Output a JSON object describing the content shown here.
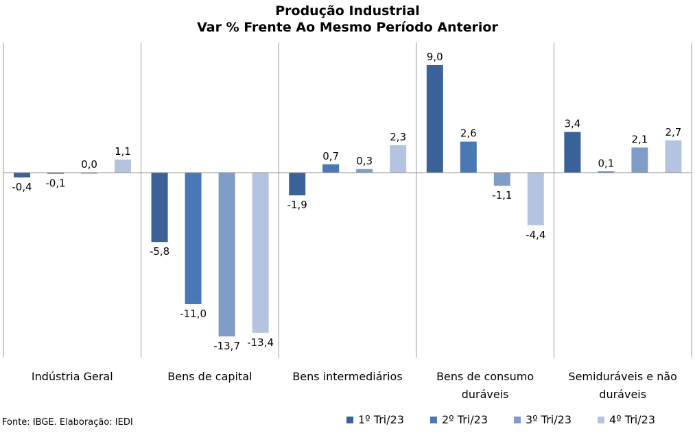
{
  "chart_data": {
    "type": "bar",
    "title": [
      "Produção Industrial",
      "Var % Frente Ao Mesmo Período Anterior"
    ],
    "categories": [
      [
        "Indústria Geral"
      ],
      [
        "Bens de capital"
      ],
      [
        "Bens intermediários"
      ],
      [
        "Bens de consumo",
        "duráveis"
      ],
      [
        "Semiduráveis e não",
        "duráveis"
      ]
    ],
    "series": [
      {
        "name": "1º Tri/23",
        "color": "#3A6298",
        "values": [
          -0.4,
          -5.8,
          -1.9,
          9.0,
          3.4
        ],
        "labels": [
          "-0,4",
          "-5,8",
          "-1,9",
          "9,0",
          "3,4"
        ]
      },
      {
        "name": "2º Tri/23",
        "color": "#4A78B5",
        "values": [
          -0.1,
          -11.0,
          0.7,
          2.6,
          0.1
        ],
        "labels": [
          "-0,1",
          "-11,0",
          "0,7",
          "2,6",
          "0,1"
        ]
      },
      {
        "name": "3º Tri/23",
        "color": "#7F9DC8",
        "values": [
          0.0,
          -13.7,
          0.3,
          -1.1,
          2.1
        ],
        "labels": [
          "0,0",
          "-13,7",
          "0,3",
          "-1,1",
          "2,1"
        ]
      },
      {
        "name": "4º Tri/23",
        "color": "#B4C4E0",
        "values": [
          1.1,
          -13.4,
          2.3,
          -4.4,
          2.7
        ],
        "labels": [
          "1,1",
          "-13,4",
          "2,3",
          "-4,4",
          "2,7"
        ]
      }
    ],
    "ylim": [
      -15.3,
      10.9
    ],
    "grid": false,
    "legend": "bottom-right"
  },
  "source_note": "Fonte: IBGE. Elaboração: IEDI"
}
